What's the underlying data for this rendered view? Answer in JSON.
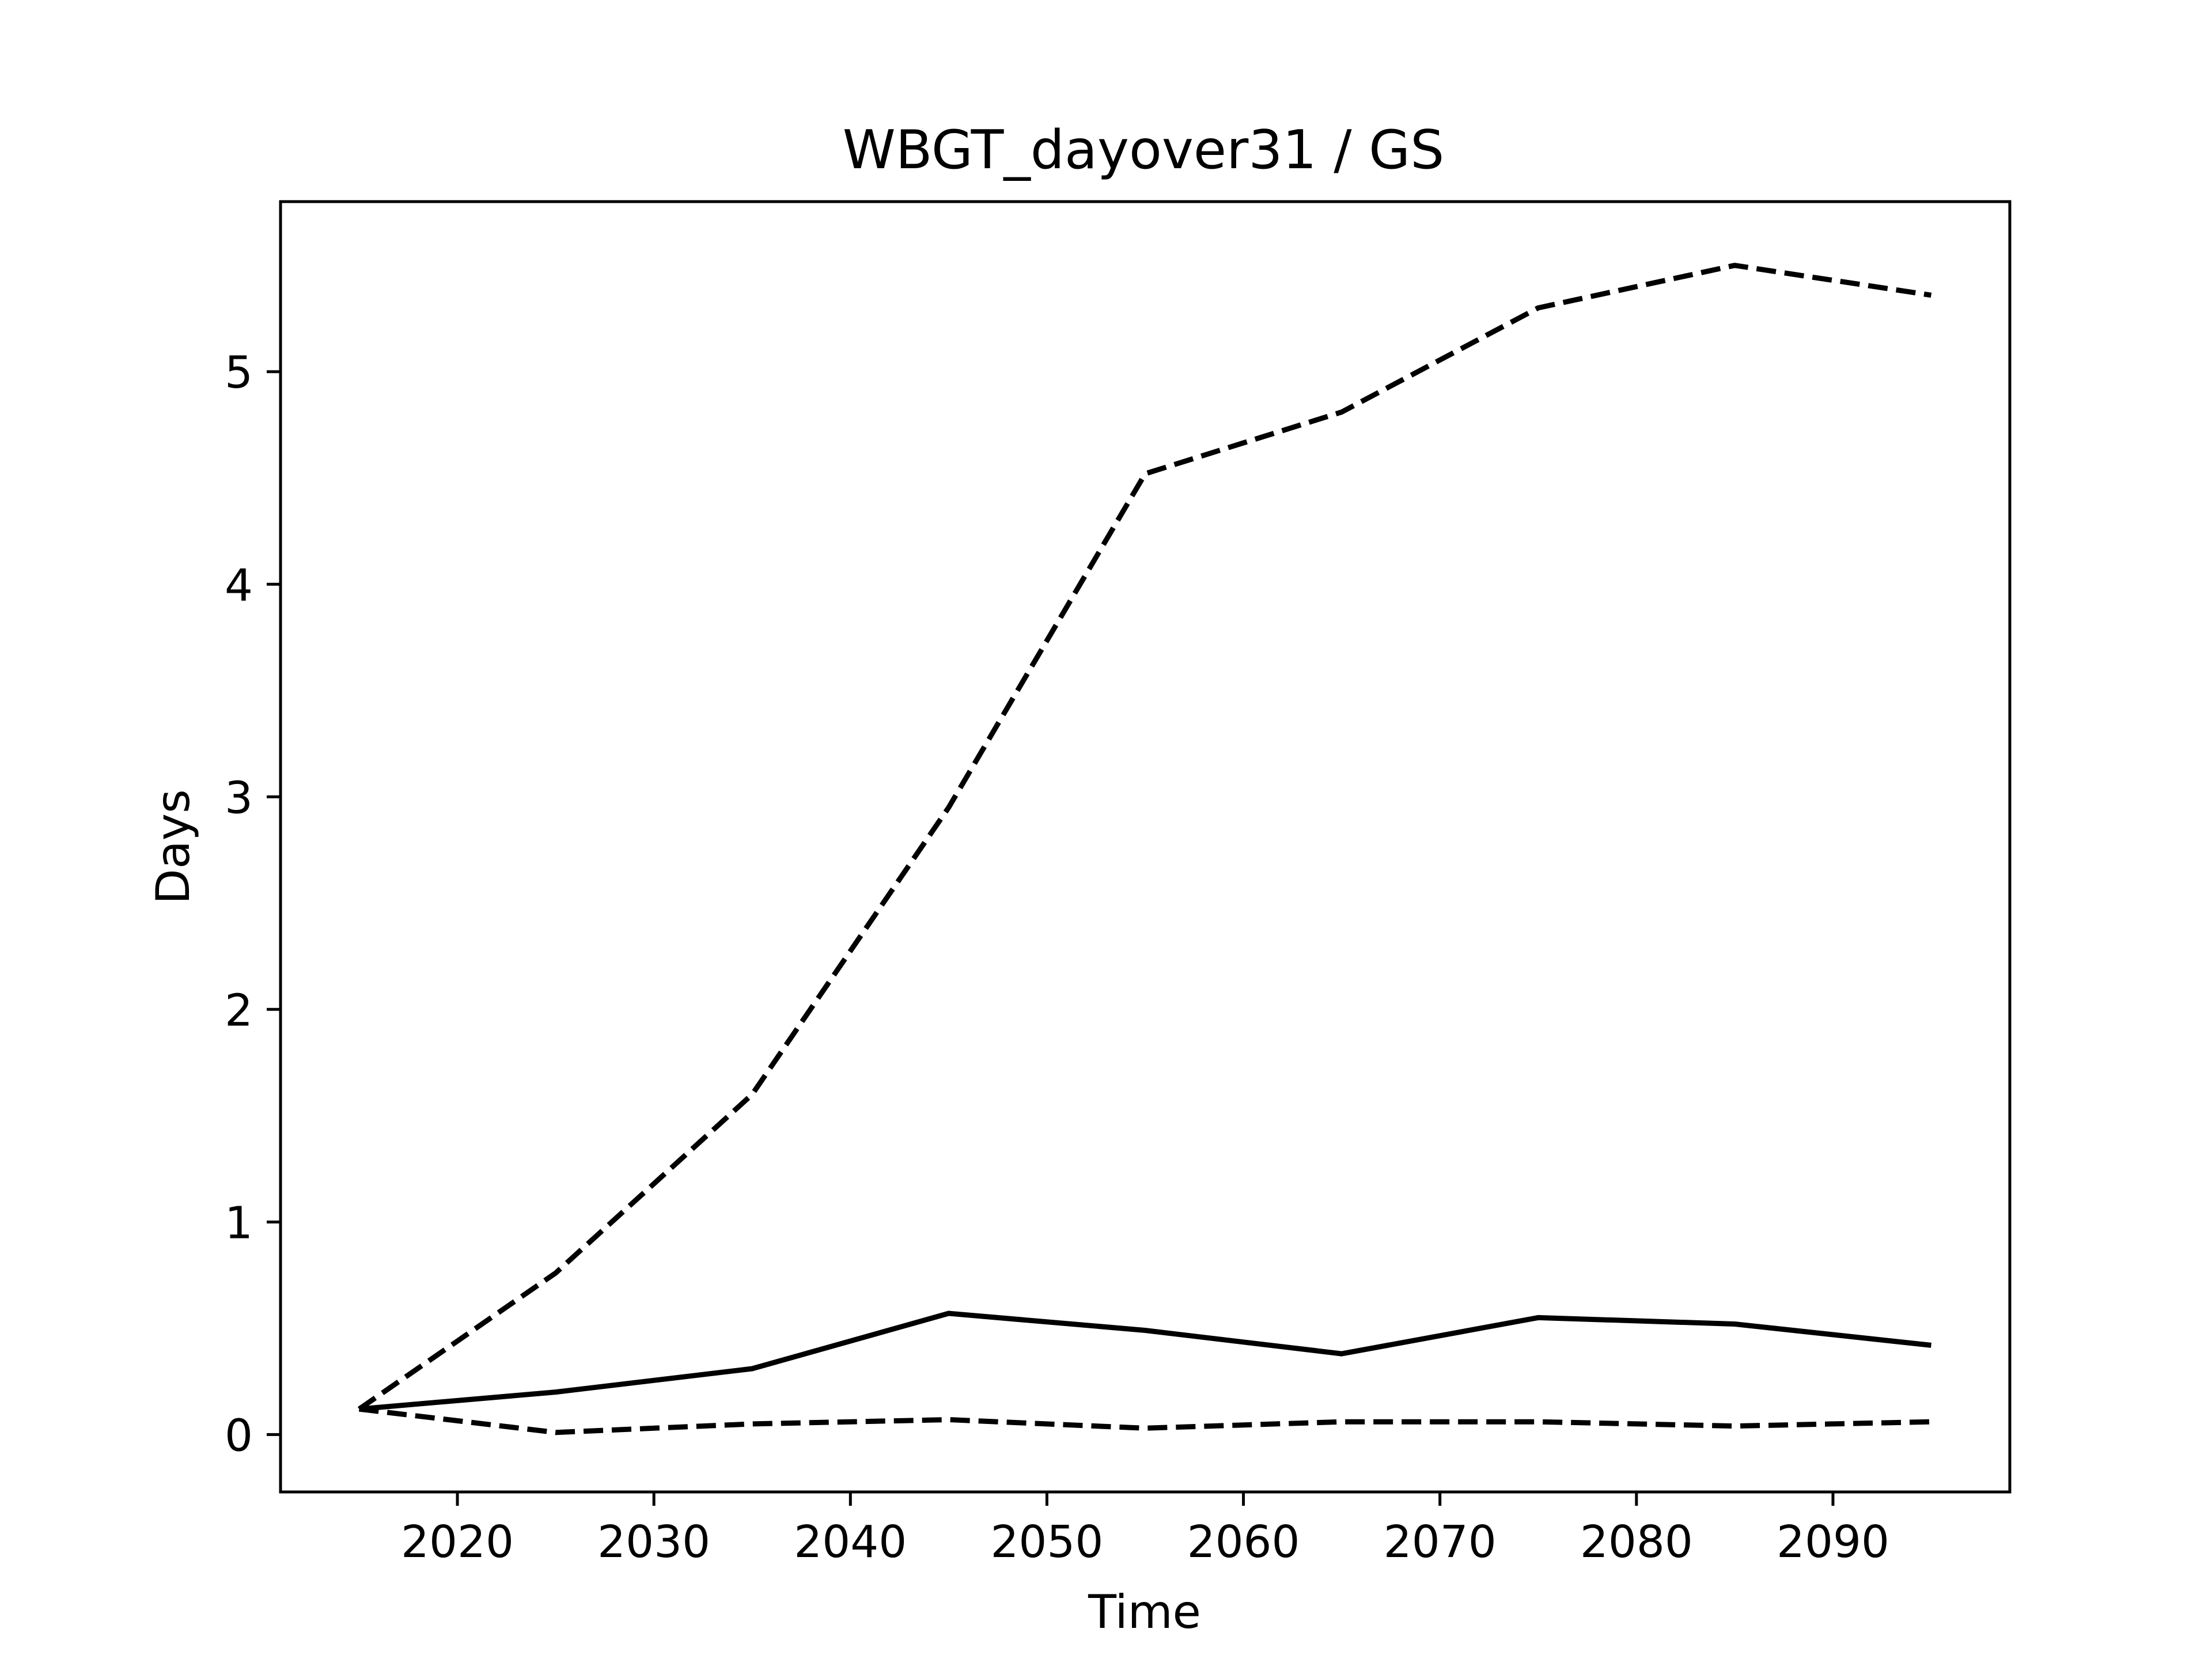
{
  "chart_data": {
    "type": "line",
    "title": "WBGT_dayover31 / GS",
    "xlabel": "Time",
    "ylabel": "Days",
    "xlim": [
      2011,
      2099
    ],
    "ylim": [
      -0.27,
      5.8
    ],
    "xticks": [
      2020,
      2030,
      2040,
      2050,
      2060,
      2070,
      2080,
      2090
    ],
    "yticks": [
      0,
      1,
      2,
      3,
      4,
      5
    ],
    "grid": false,
    "legend": "none",
    "x": [
      2015,
      2025,
      2035,
      2045,
      2055,
      2065,
      2075,
      2085,
      2095
    ],
    "series": [
      {
        "style": "solid",
        "color": "#000000",
        "values": [
          0.12,
          0.2,
          0.31,
          0.57,
          0.49,
          0.38,
          0.55,
          0.52,
          0.42
        ]
      },
      {
        "style": "dashed",
        "color": "#000000",
        "values": [
          0.12,
          0.76,
          1.6,
          2.95,
          4.52,
          4.81,
          5.3,
          5.5,
          5.36
        ]
      },
      {
        "style": "dashed",
        "color": "#000000",
        "values": [
          0.12,
          0.01,
          0.05,
          0.07,
          0.03,
          0.06,
          0.06,
          0.04,
          0.06
        ]
      }
    ]
  }
}
